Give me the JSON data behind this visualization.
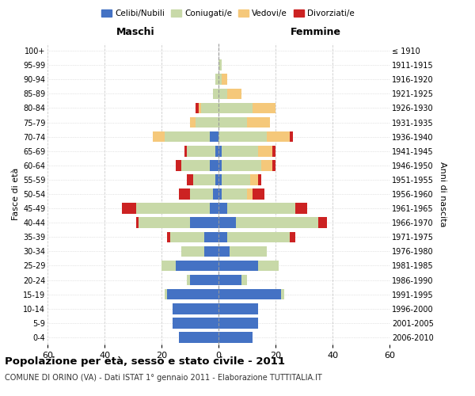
{
  "age_groups": [
    "0-4",
    "5-9",
    "10-14",
    "15-19",
    "20-24",
    "25-29",
    "30-34",
    "35-39",
    "40-44",
    "45-49",
    "50-54",
    "55-59",
    "60-64",
    "65-69",
    "70-74",
    "75-79",
    "80-84",
    "85-89",
    "90-94",
    "95-99",
    "100+"
  ],
  "birth_years": [
    "2006-2010",
    "2001-2005",
    "1996-2000",
    "1991-1995",
    "1986-1990",
    "1981-1985",
    "1976-1980",
    "1971-1975",
    "1966-1970",
    "1961-1965",
    "1956-1960",
    "1951-1955",
    "1946-1950",
    "1941-1945",
    "1936-1940",
    "1931-1935",
    "1926-1930",
    "1921-1925",
    "1916-1920",
    "1911-1915",
    "≤ 1910"
  ],
  "colors": {
    "celibi": "#4472C4",
    "coniugati": "#c8d9a8",
    "vedovi": "#f5c87a",
    "divorziati": "#cc2222"
  },
  "males": {
    "celibi": [
      14,
      16,
      16,
      18,
      10,
      15,
      5,
      5,
      10,
      3,
      2,
      1,
      3,
      1,
      3,
      0,
      0,
      0,
      0,
      0,
      0
    ],
    "coniugati": [
      0,
      0,
      0,
      1,
      1,
      5,
      8,
      12,
      18,
      26,
      8,
      8,
      10,
      10,
      16,
      8,
      6,
      2,
      1,
      0,
      0
    ],
    "vedovi": [
      0,
      0,
      0,
      0,
      0,
      0,
      0,
      0,
      0,
      0,
      0,
      0,
      0,
      0,
      4,
      2,
      1,
      0,
      0,
      0,
      0
    ],
    "divorziati": [
      0,
      0,
      0,
      0,
      0,
      0,
      0,
      1,
      1,
      5,
      4,
      2,
      2,
      1,
      0,
      0,
      1,
      0,
      0,
      0,
      0
    ]
  },
  "females": {
    "nubili": [
      12,
      14,
      14,
      22,
      8,
      14,
      4,
      3,
      6,
      3,
      1,
      1,
      1,
      1,
      0,
      0,
      0,
      0,
      0,
      0,
      0
    ],
    "coniugate": [
      0,
      0,
      0,
      1,
      2,
      7,
      13,
      22,
      29,
      24,
      9,
      10,
      14,
      13,
      17,
      10,
      12,
      3,
      1,
      1,
      0
    ],
    "vedove": [
      0,
      0,
      0,
      0,
      0,
      0,
      0,
      0,
      0,
      0,
      2,
      3,
      4,
      5,
      8,
      8,
      8,
      5,
      2,
      0,
      0
    ],
    "divorziate": [
      0,
      0,
      0,
      0,
      0,
      0,
      0,
      2,
      3,
      4,
      4,
      1,
      1,
      1,
      1,
      0,
      0,
      0,
      0,
      0,
      0
    ]
  },
  "title": "Popolazione per età, sesso e stato civile - 2011",
  "subtitle": "COMUNE DI ORINO (VA) - Dati ISTAT 1° gennaio 2011 - Elaborazione TUTTITALIA.IT",
  "xlabel_left": "Maschi",
  "xlabel_right": "Femmine",
  "ylabel_left": "Fasce di età",
  "ylabel_right": "Anni di nascita",
  "xlim": 60,
  "legend_labels": [
    "Celibi/Nubili",
    "Coniugati/e",
    "Vedovi/e",
    "Divorziati/e"
  ],
  "background_color": "#ffffff",
  "grid_color": "#cccccc"
}
